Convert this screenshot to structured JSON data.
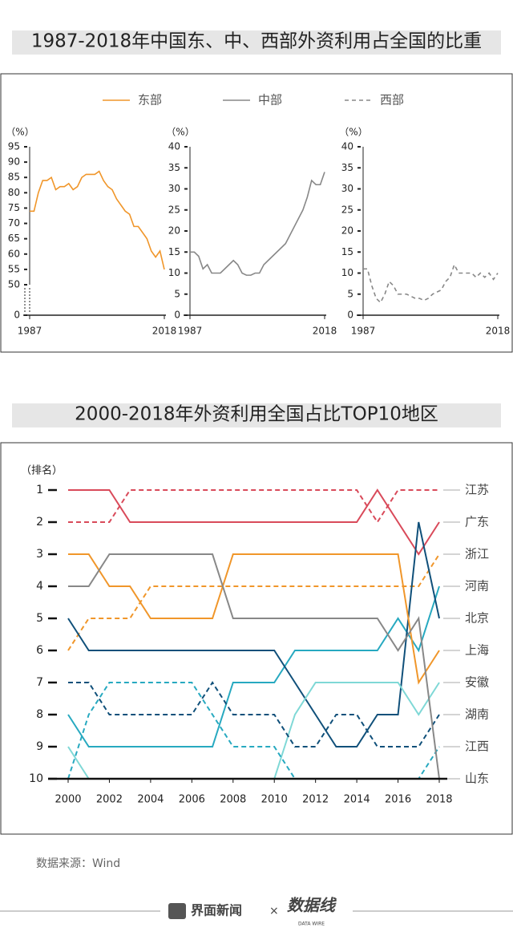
{
  "title_top": "1987-2018年中国东、中、西部外资利用占全国的比重",
  "title_bottom": "2000-2018年外资利用全国占比TOP10地区",
  "source": "数据来源：Wind",
  "footer": {
    "brand": "界面新闻",
    "times": "×",
    "partner": "数据线",
    "partner_en": "DATA WIRE"
  },
  "chart_data": [
    {
      "type": "line",
      "ylabel": "（%）",
      "x": [
        1987,
        1988,
        1989,
        1990,
        1991,
        1992,
        1993,
        1994,
        1995,
        1996,
        1997,
        1998,
        1999,
        2000,
        2001,
        2002,
        2003,
        2004,
        2005,
        2006,
        2007,
        2008,
        2009,
        2010,
        2011,
        2012,
        2013,
        2014,
        2015,
        2016,
        2017,
        2018
      ],
      "xlim": [
        1987,
        2018
      ],
      "xticks": [
        1987,
        2018
      ],
      "ylim": [
        0,
        95
      ],
      "axis_break": [
        0,
        50
      ],
      "yticks": [
        0,
        50,
        55,
        60,
        65,
        70,
        75,
        80,
        85,
        90,
        95
      ],
      "series": [
        {
          "name": "东部",
          "color": "#f0962a",
          "dash": false,
          "values": [
            74,
            74,
            80,
            84,
            84,
            85,
            81,
            82,
            82,
            83,
            81,
            82,
            85,
            86,
            86,
            86,
            87,
            84,
            82,
            81,
            78,
            76,
            74,
            73,
            69,
            69,
            67,
            65,
            61,
            59,
            61,
            55
          ]
        }
      ]
    },
    {
      "type": "line",
      "ylabel": "（%）",
      "x": [
        1987,
        1988,
        1989,
        1990,
        1991,
        1992,
        1993,
        1994,
        1995,
        1996,
        1997,
        1998,
        1999,
        2000,
        2001,
        2002,
        2003,
        2004,
        2005,
        2006,
        2007,
        2008,
        2009,
        2010,
        2011,
        2012,
        2013,
        2014,
        2015,
        2016,
        2017,
        2018
      ],
      "xlim": [
        1987,
        2018
      ],
      "xticks": [
        1987,
        2018
      ],
      "ylim": [
        0,
        40
      ],
      "yticks": [
        0,
        5,
        10,
        15,
        20,
        25,
        30,
        35,
        40
      ],
      "series": [
        {
          "name": "中部",
          "color": "#888888",
          "dash": false,
          "values": [
            15,
            15,
            14,
            11,
            12,
            10,
            10,
            10,
            11,
            12,
            13,
            12,
            10,
            9.5,
            9.5,
            10,
            10,
            12,
            13,
            14,
            15,
            16,
            17,
            19,
            21,
            23,
            25,
            28,
            32,
            31,
            31,
            34
          ]
        }
      ]
    },
    {
      "type": "line",
      "ylabel": "（%）",
      "x": [
        1987,
        1988,
        1989,
        1990,
        1991,
        1992,
        1993,
        1994,
        1995,
        1996,
        1997,
        1998,
        1999,
        2000,
        2001,
        2002,
        2003,
        2004,
        2005,
        2006,
        2007,
        2008,
        2009,
        2010,
        2011,
        2012,
        2013,
        2014,
        2015,
        2016,
        2017,
        2018
      ],
      "xlim": [
        1987,
        2018
      ],
      "xticks": [
        1987,
        2018
      ],
      "ylim": [
        0,
        40
      ],
      "yticks": [
        0,
        5,
        10,
        15,
        20,
        25,
        30,
        35,
        40
      ],
      "series": [
        {
          "name": "西部",
          "color": "#888888",
          "dash": true,
          "values": [
            11,
            11,
            7,
            4,
            3,
            5,
            8,
            7,
            5,
            5,
            5,
            4.5,
            4,
            4,
            3.5,
            4,
            5,
            5.5,
            6,
            8,
            9,
            12,
            10,
            10,
            10,
            10,
            9,
            10,
            9,
            10,
            8.5,
            10
          ]
        }
      ]
    },
    {
      "type": "rank",
      "ylabel": "（排名）",
      "x": [
        2000,
        2001,
        2002,
        2003,
        2004,
        2005,
        2006,
        2007,
        2008,
        2009,
        2010,
        2011,
        2012,
        2013,
        2014,
        2015,
        2016,
        2017,
        2018
      ],
      "xlim": [
        2000,
        2018
      ],
      "xticks": [
        2000,
        2002,
        2004,
        2006,
        2008,
        2010,
        2012,
        2014,
        2016,
        2018
      ],
      "ylim": [
        1,
        10
      ],
      "y_inverted": true,
      "yticks": [
        1,
        2,
        3,
        4,
        5,
        6,
        7,
        8,
        9,
        10
      ],
      "series": [
        {
          "name": "江苏",
          "color": "#d94a5a",
          "dash": true,
          "values": [
            2,
            2,
            2,
            1,
            1,
            1,
            1,
            1,
            1,
            1,
            1,
            1,
            1,
            1,
            1,
            2,
            1,
            1,
            1
          ]
        },
        {
          "name": "广东",
          "color": "#d94a5a",
          "dash": false,
          "values": [
            1,
            1,
            1,
            2,
            2,
            2,
            2,
            2,
            2,
            2,
            2,
            2,
            2,
            2,
            2,
            1,
            2,
            3,
            2
          ]
        },
        {
          "name": "浙江",
          "color": "#f0962a",
          "dash": true,
          "values": [
            6,
            5,
            5,
            5,
            4,
            4,
            4,
            4,
            4,
            4,
            4,
            4,
            4,
            4,
            4,
            4,
            4,
            4,
            3
          ]
        },
        {
          "name": "河南",
          "color": "#27a9c0",
          "dash": false,
          "values": [
            8,
            9,
            9,
            9,
            9,
            9,
            9,
            9,
            7,
            7,
            7,
            6,
            6,
            6,
            6,
            6,
            5,
            6,
            4
          ]
        },
        {
          "name": "北京",
          "color": "#10507a",
          "dash": false,
          "values": [
            5,
            6,
            6,
            6,
            6,
            6,
            6,
            6,
            6,
            6,
            6,
            7,
            8,
            9,
            9,
            8,
            8,
            2,
            5
          ]
        },
        {
          "name": "上海",
          "color": "#f0962a",
          "dash": false,
          "values": [
            3,
            3,
            4,
            4,
            5,
            5,
            5,
            5,
            3,
            3,
            3,
            3,
            3,
            3,
            3,
            3,
            3,
            7,
            6
          ]
        },
        {
          "name": "安徽",
          "color": "#7fd8d6",
          "dash": false,
          "values": [
            9,
            10,
            10,
            10,
            10,
            10,
            10,
            10,
            10,
            10,
            10,
            8,
            7,
            7,
            7,
            7,
            7,
            8,
            7
          ]
        },
        {
          "name": "湖南",
          "color": "#10507a",
          "dash": true,
          "values": [
            7,
            7,
            8,
            8,
            8,
            8,
            8,
            7,
            8,
            8,
            8,
            9,
            9,
            8,
            8,
            9,
            9,
            9,
            8
          ]
        },
        {
          "name": "江西",
          "color": "#27a9c0",
          "dash": true,
          "values": [
            10,
            8,
            7,
            7,
            7,
            7,
            7,
            8,
            9,
            9,
            9,
            10,
            10,
            10,
            10,
            10,
            10,
            10,
            9
          ]
        },
        {
          "name": "山东",
          "color": "#888888",
          "dash": false,
          "values": [
            4,
            4,
            3,
            3,
            3,
            3,
            3,
            3,
            5,
            5,
            5,
            5,
            5,
            5,
            5,
            5,
            6,
            5,
            10
          ]
        }
      ]
    }
  ]
}
